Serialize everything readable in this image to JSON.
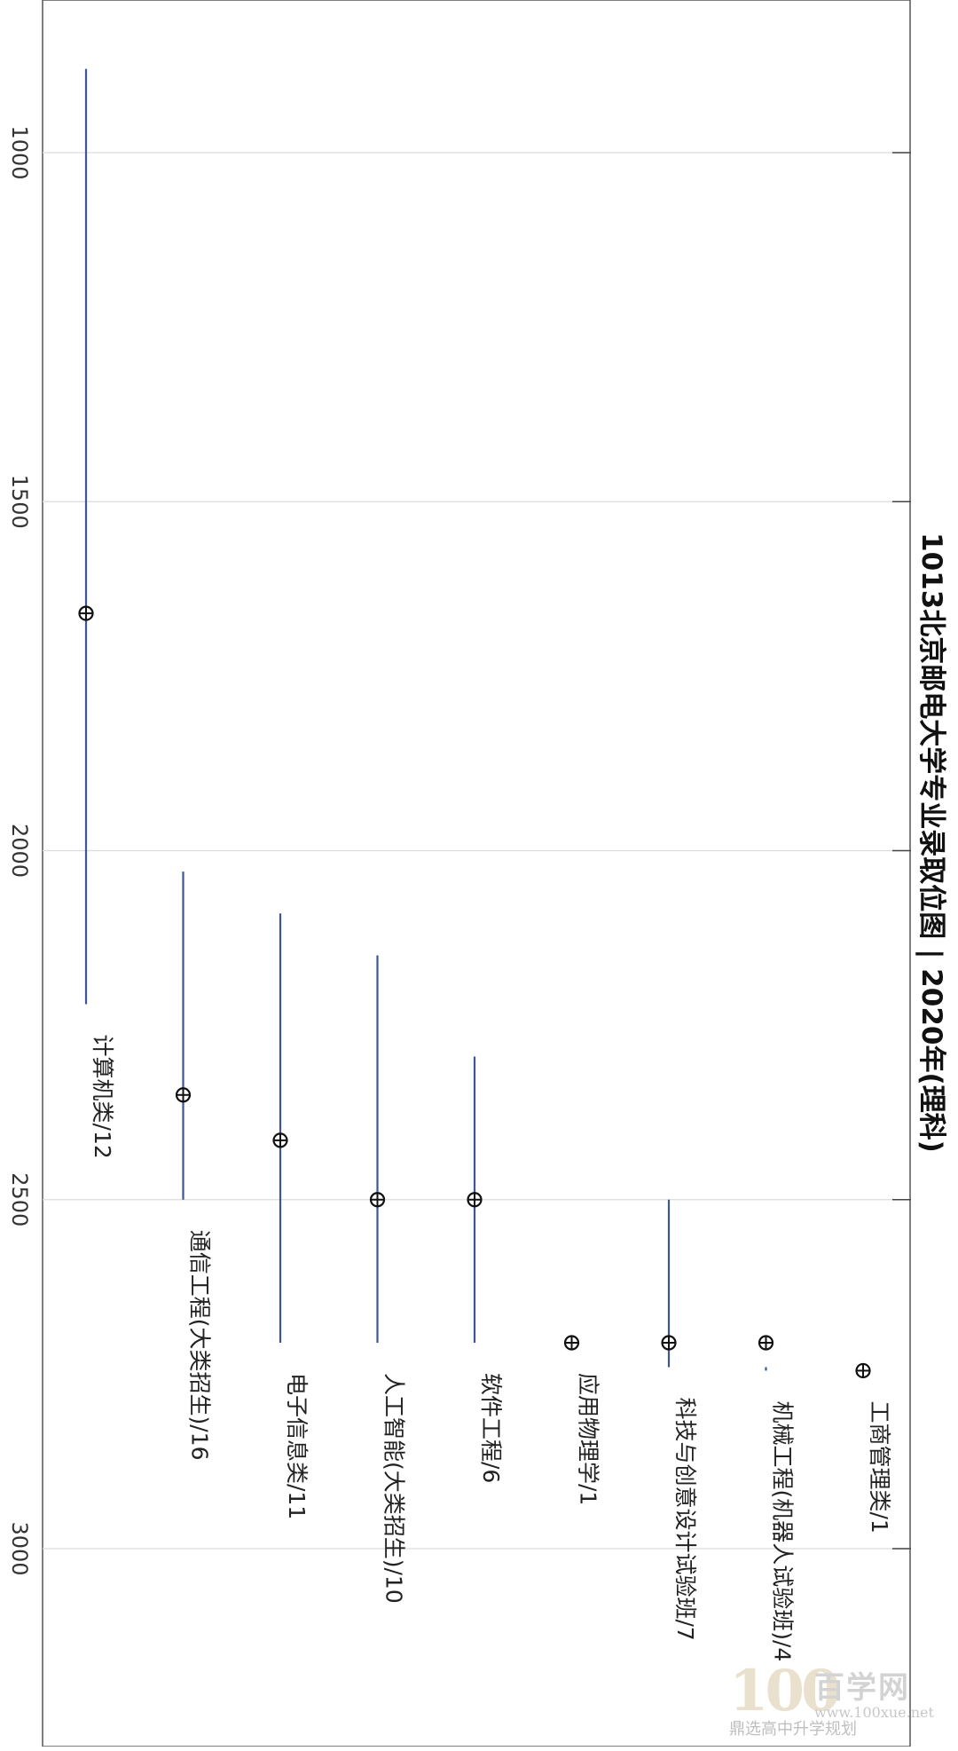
{
  "chart_data": {
    "type": "line",
    "orientation": "rotated-90",
    "title": "1013北京邮电大学专业录取位图 | 2020年(理科)",
    "ylim": [
      3250,
      790
    ],
    "grid": true,
    "yticks": [
      1000,
      1500,
      2000,
      2500,
      3000
    ],
    "categories": [
      "计算机类/12",
      "通信工程(大类招生)/16",
      "电子信息类/11",
      "人工智能(大类招生)/10",
      "软件工程/6",
      "应用物理学/1",
      "科技与创意设计试验班/7",
      "机械工程(机器人试验班)/4",
      "工商管理类/1"
    ],
    "series": [
      {
        "role": "range",
        "low": [
          880,
          2030,
          2090,
          2150,
          2295,
          null,
          2500,
          2740,
          null
        ],
        "high": [
          2220,
          2500,
          2705,
          2705,
          2705,
          null,
          2740,
          2745,
          null
        ]
      },
      {
        "role": "point",
        "values": [
          1660,
          2350,
          2415,
          2500,
          2500,
          2705,
          2705,
          2705,
          2745
        ]
      }
    ]
  },
  "watermark": {
    "logo": "100",
    "cn": "百学网",
    "url": "www.100xue.net",
    "sub": "鼎选高中升学规划"
  }
}
